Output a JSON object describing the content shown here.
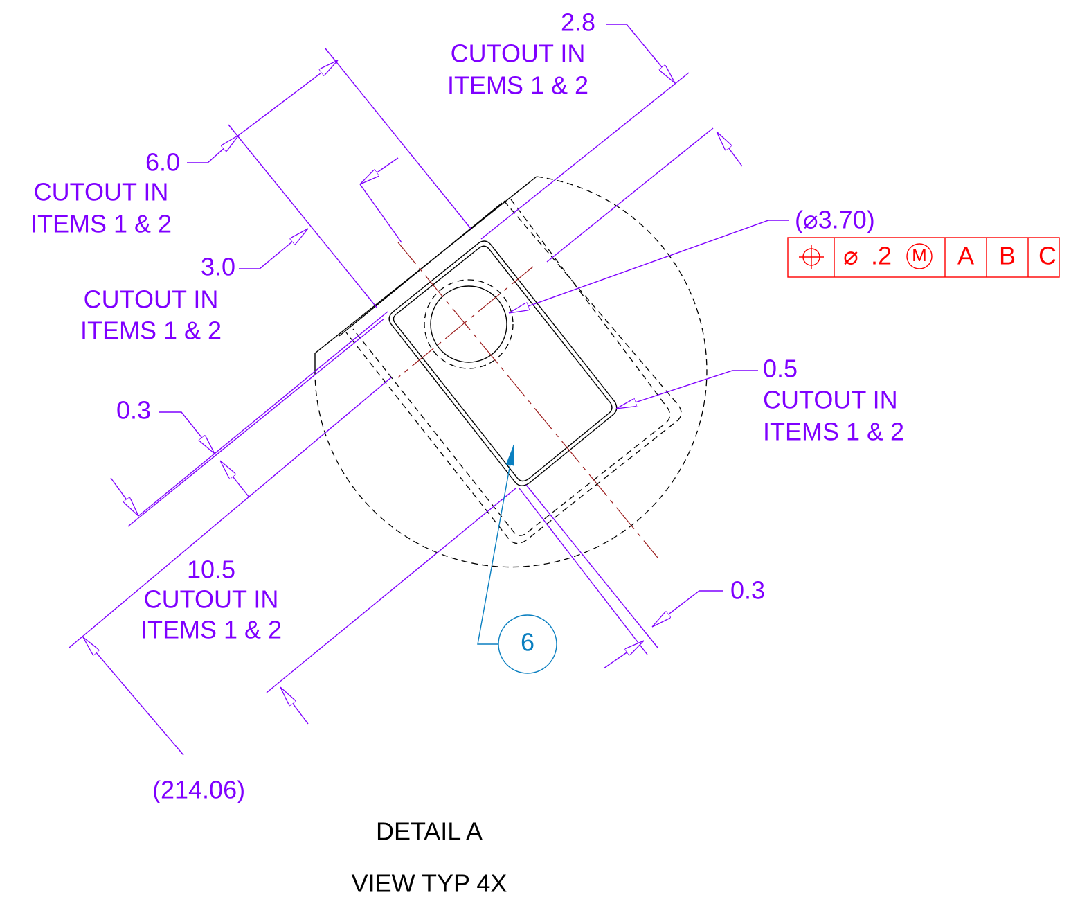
{
  "dimensions": [
    {
      "value": "2.8",
      "note": [
        "CUTOUT IN",
        "ITEMS 1 & 2"
      ]
    },
    {
      "value": "6.0",
      "note": [
        "CUTOUT IN",
        "ITEMS 1 & 2"
      ]
    },
    {
      "value": "3.0",
      "note": [
        "CUTOUT IN",
        "ITEMS 1 & 2"
      ]
    },
    {
      "value": "0.3"
    },
    {
      "value": "0.5",
      "note": [
        "CUTOUT IN",
        "ITEMS 1 & 2"
      ]
    },
    {
      "value": "10.5",
      "note": [
        "CUTOUT IN",
        "ITEMS 1 & 2"
      ]
    },
    {
      "value": "0.3"
    }
  ],
  "reference_dimensions": [
    "(⌀3.70)",
    "(214.06)"
  ],
  "feature_control_frame": {
    "diameter": "⌀",
    "tolerance": ".2",
    "modifier": "M",
    "datums": [
      "A",
      "B",
      "C"
    ]
  },
  "balloon": "6",
  "caption": [
    "DETAIL A",
    "VIEW TYP 4X"
  ]
}
